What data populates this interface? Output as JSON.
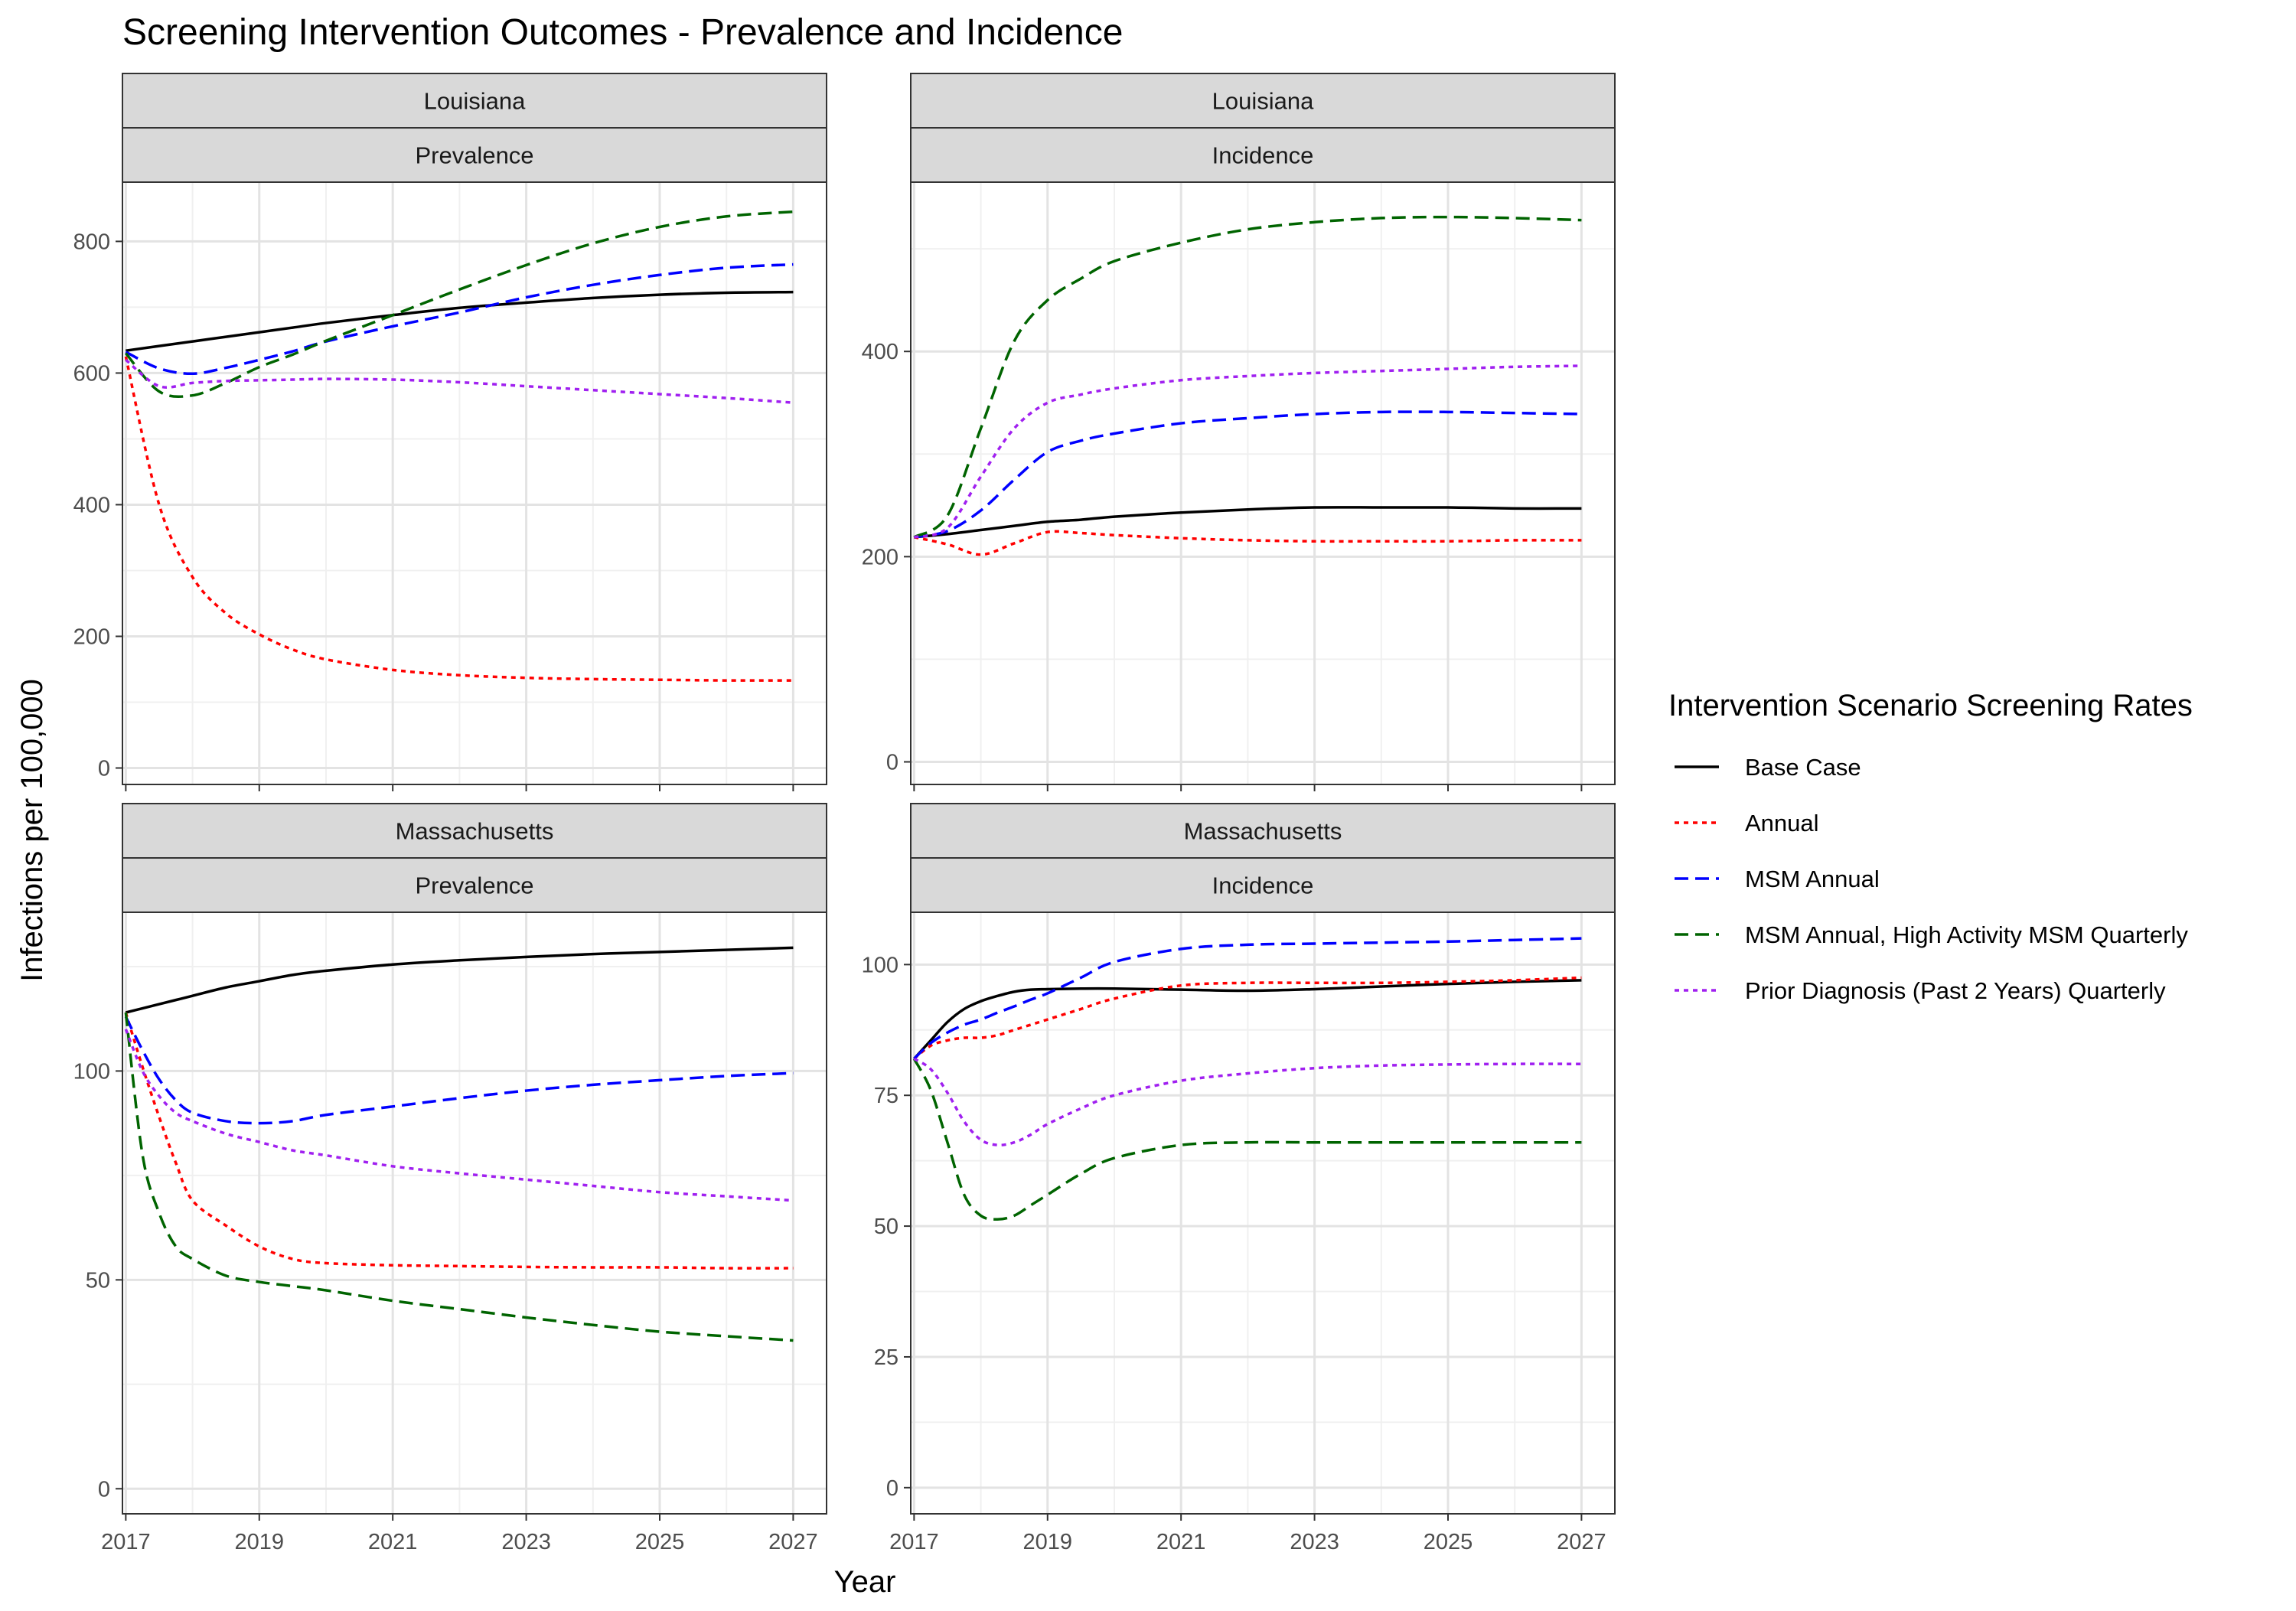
{
  "chart_data": {
    "type": "line",
    "title": "Screening Intervention Outcomes - Prevalence and Incidence",
    "xlabel": "Year",
    "ylabel": "Infections per 100,000",
    "x_ticks": [
      2017,
      2019,
      2021,
      2023,
      2025,
      2027
    ],
    "x_range": [
      2016.95,
      2027.5
    ],
    "grid": true,
    "legend": {
      "title": "Intervention Scenario Screening Rates",
      "position": "right",
      "entries": [
        {
          "name": "Base Case",
          "color": "#000000",
          "dash": "solid"
        },
        {
          "name": "Annual",
          "color": "#ff0000",
          "dash": "dotted"
        },
        {
          "name": "MSM Annual",
          "color": "#0000ff",
          "dash": "dashed"
        },
        {
          "name": "MSM Annual, High Activity MSM Quarterly",
          "color": "#006400",
          "dash": "dashed"
        },
        {
          "name": "Prior Diagnosis (Past 2 Years) Quarterly",
          "color": "#a020f0",
          "dash": "dotted"
        }
      ]
    },
    "panels": [
      {
        "state": "Louisiana",
        "measure": "Prevalence",
        "ylim": [
          -25,
          890
        ],
        "y_ticks": [
          0,
          200,
          400,
          600,
          800
        ],
        "x": [
          2017,
          2017.5,
          2018,
          2018.5,
          2019,
          2019.5,
          2020,
          2021,
          2022,
          2023,
          2024,
          2025,
          2026,
          2027
        ],
        "series": [
          {
            "name": "Base Case",
            "values": [
              634,
              641,
              648,
              655,
              662,
              669,
              676,
              688,
              699,
              707,
              714,
              719,
              722,
              723
            ]
          },
          {
            "name": "Annual",
            "values": [
              625,
              400,
              290,
              235,
              203,
              180,
              165,
              149,
              141,
              137,
              135,
              134,
              133,
              133
            ]
          },
          {
            "name": "MSM Annual",
            "values": [
              632,
              607,
              599,
              608,
              620,
              633,
              648,
              671,
              692,
              715,
              734,
              749,
              760,
              765
            ]
          },
          {
            "name": "MSM Annual, High Activity MSM Quarterly",
            "values": [
              630,
              572,
              566,
              585,
              609,
              628,
              649,
              688,
              727,
              764,
              797,
              822,
              838,
              845
            ]
          },
          {
            "name": "Prior Diagnosis (Past 2 Years) Quarterly",
            "values": [
              620,
              580,
              585,
              588,
              589,
              590,
              591,
              590,
              586,
              580,
              574,
              568,
              562,
              555
            ]
          }
        ]
      },
      {
        "state": "Louisiana",
        "measure": "Incidence",
        "ylim": [
          -22,
          565
        ],
        "y_ticks": [
          0,
          200,
          400
        ],
        "x": [
          2017,
          2017.5,
          2018,
          2018.5,
          2019,
          2019.5,
          2020,
          2021,
          2022,
          2023,
          2024,
          2025,
          2026,
          2027
        ],
        "series": [
          {
            "name": "Base Case",
            "values": [
              219,
              222,
              226,
              230,
              234,
              236,
              239,
              243,
              246,
              248,
              248,
              248,
              247,
              247
            ]
          },
          {
            "name": "Annual",
            "values": [
              219,
              212,
              202,
              213,
              224,
              223,
              221,
              218,
              216,
              215,
              215,
              215,
              216,
              216
            ]
          },
          {
            "name": "MSM Annual",
            "values": [
              219,
              225,
              245,
              275,
              302,
              313,
              320,
              330,
              335,
              339,
              341,
              341,
              340,
              339
            ]
          },
          {
            "name": "MSM Annual, High Activity MSM Quarterly",
            "values": [
              219,
              240,
              325,
              410,
              450,
              471,
              488,
              506,
              519,
              526,
              530,
              531,
              530,
              528
            ]
          },
          {
            "name": "Prior Diagnosis (Past 2 Years) Quarterly",
            "values": [
              219,
              228,
              278,
              325,
              350,
              358,
              364,
              372,
              376,
              379,
              381,
              383,
              385,
              386
            ]
          }
        ]
      },
      {
        "state": "Massachusetts",
        "measure": "Prevalence",
        "ylim": [
          -6,
          138
        ],
        "y_ticks": [
          0,
          50,
          100
        ],
        "x": [
          2017,
          2017.25,
          2017.5,
          2017.75,
          2018,
          2018.5,
          2019,
          2019.5,
          2020,
          2021,
          2022,
          2023,
          2024,
          2025,
          2026,
          2027
        ],
        "series": [
          {
            "name": "Base Case",
            "values": [
              114,
              115,
              116,
              117,
              118,
              120,
              121.5,
              123,
              124,
              125.5,
              126.5,
              127.3,
              128,
              128.5,
              129,
              129.5
            ]
          },
          {
            "name": "Annual",
            "values": [
              114,
              101,
              89,
              78,
              69,
              63,
              58,
              55,
              54,
              53.5,
              53.3,
              53.1,
              53,
              53,
              52.8,
              52.8
            ]
          },
          {
            "name": "MSM Annual",
            "values": [
              113,
              105,
              98,
              93,
              90,
              88,
              87.5,
              88,
              89.5,
              91.5,
              93.5,
              95.3,
              96.7,
              97.8,
              98.8,
              99.5
            ]
          },
          {
            "name": "MSM Annual, High Activity MSM Quarterly",
            "values": [
              114,
              80,
              66,
              58,
              55,
              51,
              49.5,
              48.5,
              47.5,
              45,
              43,
              41,
              39.2,
              37.6,
              36.5,
              35.5
            ]
          },
          {
            "name": "Prior Diagnosis (Past 2 Years) Quarterly",
            "values": [
              110,
              100,
              94,
              90,
              88,
              85,
              83,
              81,
              79.8,
              77.2,
              75.5,
              74,
              72.5,
              71,
              70,
              69
            ]
          }
        ]
      },
      {
        "state": "Massachusetts",
        "measure": "Incidence",
        "ylim": [
          -5,
          110
        ],
        "y_ticks": [
          0,
          25,
          50,
          75,
          100
        ],
        "x": [
          2017,
          2017.25,
          2017.5,
          2017.75,
          2018,
          2018.25,
          2018.5,
          2018.75,
          2019,
          2019.5,
          2020,
          2021,
          2022,
          2023,
          2024,
          2025,
          2026,
          2027
        ],
        "series": [
          {
            "name": "Base Case",
            "values": [
              82,
              85.5,
              89,
              91.5,
              93,
              94,
              94.8,
              95.2,
              95.3,
              95.4,
              95.4,
              95.2,
              95,
              95.3,
              95.8,
              96.3,
              96.7,
              97
            ]
          },
          {
            "name": "Annual",
            "values": [
              82,
              84.5,
              85.5,
              86,
              86,
              86.5,
              87.5,
              88.5,
              89.5,
              91.5,
              93.5,
              96,
              96.5,
              96.5,
              96.5,
              96.7,
              97,
              97.5
            ]
          },
          {
            "name": "MSM Annual",
            "values": [
              82,
              85,
              87,
              88.5,
              89.5,
              90.8,
              92,
              93.3,
              94.5,
              97.5,
              100.5,
              103,
              103.8,
              104,
              104.2,
              104.4,
              104.7,
              105
            ]
          },
          {
            "name": "MSM Annual, High Activity MSM Quarterly",
            "values": [
              82,
              76,
              66,
              56,
              52,
              51.3,
              52,
              54,
              56,
              60,
              63,
              65.5,
              66,
              66,
              66,
              66,
              66,
              66
            ]
          },
          {
            "name": "Prior Diagnosis (Past 2 Years) Quarterly",
            "values": [
              82,
              80,
              75.5,
              70,
              66.5,
              65.5,
              66,
              67.5,
              69.5,
              72.5,
              75,
              77.8,
              79.2,
              80.2,
              80.7,
              80.9,
              81,
              81
            ]
          }
        ]
      }
    ]
  }
}
